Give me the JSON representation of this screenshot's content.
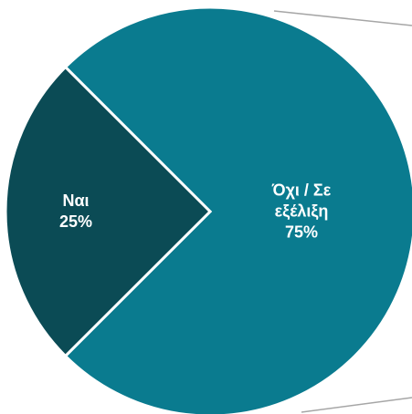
{
  "chart_data": {
    "type": "pie",
    "categories": [
      "Ναι",
      "Όχι / Σε εξέλιξη"
    ],
    "values": [
      25,
      75
    ],
    "value_labels": [
      "25%",
      "75%"
    ],
    "colors": [
      "#0b4b55",
      "#0a7b8f"
    ]
  }
}
